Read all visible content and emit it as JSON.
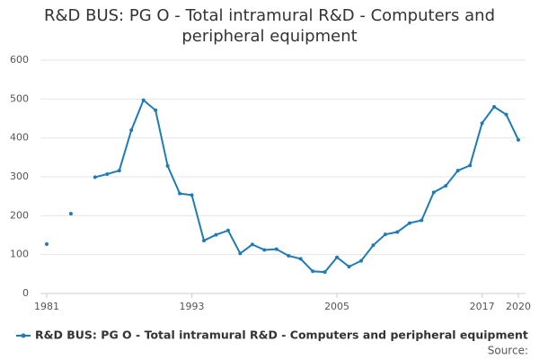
{
  "chart_data": {
    "type": "line",
    "title": "R&D BUS: PG O - Total intramural R&D - Computers and peripheral equipment",
    "x": [
      1981,
      1982,
      1983,
      1984,
      1985,
      1986,
      1987,
      1988,
      1989,
      1990,
      1991,
      1992,
      1993,
      1994,
      1995,
      1996,
      1997,
      1998,
      1999,
      2000,
      2001,
      2002,
      2003,
      2004,
      2005,
      2006,
      2007,
      2008,
      2009,
      2010,
      2011,
      2012,
      2013,
      2014,
      2015,
      2016,
      2017,
      2018,
      2019,
      2020
    ],
    "series": [
      {
        "name": "R&D BUS: PG O - Total intramural R&D - Computers and peripheral equipment",
        "color": "#1f7bb6",
        "values": [
          127,
          null,
          205,
          null,
          299,
          307,
          316,
          420,
          497,
          471,
          328,
          257,
          253,
          136,
          151,
          162,
          103,
          126,
          112,
          114,
          97,
          89,
          57,
          55,
          93,
          69,
          84,
          124,
          152,
          158,
          181,
          188,
          260,
          277,
          316,
          329,
          438,
          480,
          460,
          395
        ]
      }
    ],
    "xlim": [
      1981,
      2020
    ],
    "xticks": [
      1981,
      1993,
      2005,
      2017,
      2020
    ],
    "ylim": [
      0,
      600
    ],
    "yticks": [
      0,
      100,
      200,
      300,
      400,
      500,
      600
    ],
    "grid": true,
    "legend": "bottom",
    "source": "Source:"
  }
}
